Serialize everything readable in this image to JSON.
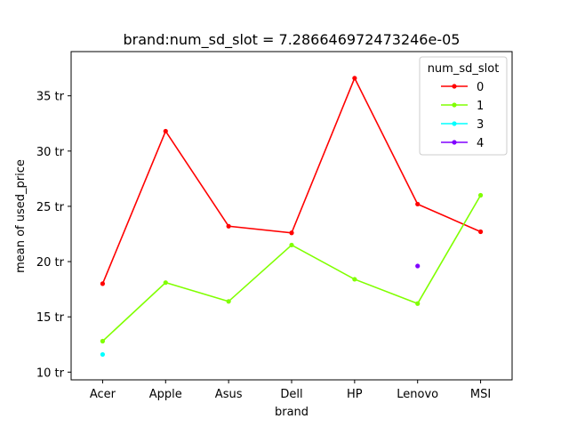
{
  "chart_data": {
    "type": "line",
    "title": "brand:num_sd_slot = 7.286646972473246e-05",
    "xlabel": "brand",
    "ylabel": "mean of used_price",
    "categories": [
      "Acer",
      "Apple",
      "Asus",
      "Dell",
      "HP",
      "Lenovo",
      "MSI"
    ],
    "ylim": [
      9.3,
      39.0
    ],
    "yticks": [
      10,
      15,
      20,
      25,
      30,
      35
    ],
    "ytick_labels": [
      "10 tr",
      "15 tr",
      "20 tr",
      "25 tr",
      "30 tr",
      "35 tr"
    ],
    "grid": false,
    "legend": {
      "title": "num_sd_slot",
      "placement": "top-right"
    },
    "series": [
      {
        "name": "0",
        "color": "#ff0000",
        "values": [
          18.0,
          31.8,
          23.2,
          22.6,
          36.6,
          25.2,
          22.7
        ]
      },
      {
        "name": "1",
        "color": "#80ff00",
        "values": [
          12.8,
          18.1,
          16.4,
          21.5,
          18.4,
          16.2,
          26.0
        ]
      },
      {
        "name": "3",
        "color": "#00ffff",
        "values": [
          11.6,
          null,
          null,
          null,
          null,
          null,
          null
        ]
      },
      {
        "name": "4",
        "color": "#8000ff",
        "values": [
          null,
          null,
          null,
          null,
          null,
          19.6,
          null
        ]
      }
    ]
  }
}
